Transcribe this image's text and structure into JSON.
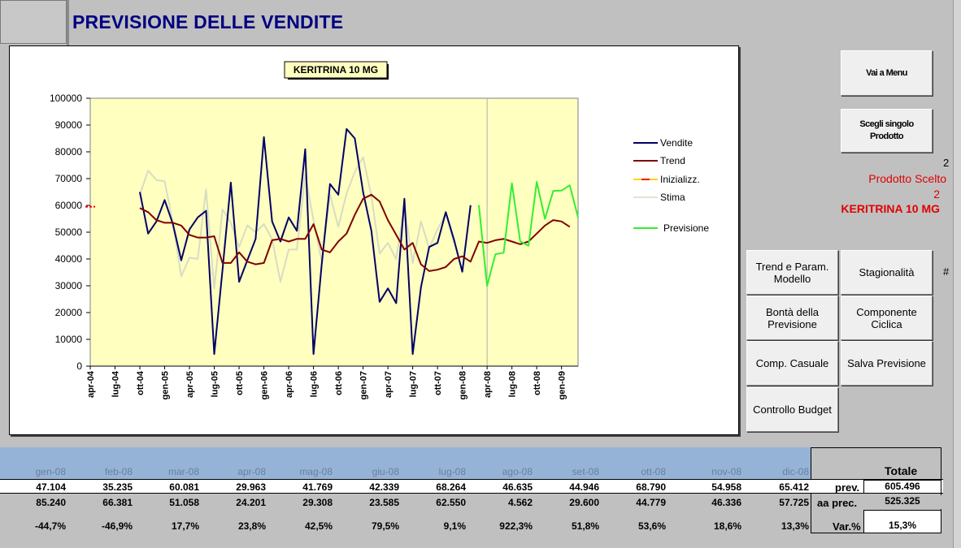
{
  "header": {
    "title": "PREVISIONE DELLE VENDITE"
  },
  "chart_data": {
    "type": "line",
    "title": "KERITRINA  10 MG",
    "ylim": [
      0,
      100000
    ],
    "y_ticks": [
      "100000",
      "90000",
      "80000",
      "70000",
      "60000",
      "50000",
      "40000",
      "30000",
      "20000",
      "10000",
      "0"
    ],
    "x_ticks": [
      "apr-04",
      "lug-04",
      "ott-04",
      "gen-05",
      "apr-05",
      "lug-05",
      "ott-05",
      "gen-06",
      "apr-06",
      "lug-06",
      "ott-06",
      "gen-07",
      "apr-07",
      "lug-07",
      "ott-07",
      "gen-08",
      "apr-08",
      "lug-08",
      "ott-08",
      "gen-09"
    ],
    "legend": [
      "Vendite",
      "Trend",
      "Inizializz.",
      "Stima",
      "Previsione"
    ],
    "legend_position": "right",
    "plot_background": "#ffffc0",
    "colors": {
      "Vendite": "#000066",
      "Trend": "#800000",
      "Inizializz.": "#ff0000",
      "Stima": "#d8dcc4",
      "Previsione": "#33ee33"
    },
    "series": [
      {
        "name": "Vendite",
        "start_month": 6,
        "values": [
          65000,
          49500,
          54000,
          62000,
          53000,
          39500,
          51000,
          55500,
          58000,
          4500,
          36000,
          68500,
          31500,
          39500,
          47500,
          85500,
          54000,
          46500,
          55500,
          50500,
          81000,
          4500,
          38000,
          68000,
          64000,
          88500,
          85000,
          65000,
          50500,
          24000,
          29000,
          23500,
          62500,
          4500,
          29500,
          44500,
          46000,
          57500,
          47104,
          35235,
          60081
        ]
      },
      {
        "name": "Trend",
        "start_month": 6,
        "values": [
          59000,
          57500,
          54500,
          53500,
          53500,
          52500,
          49000,
          48000,
          48000,
          48500,
          38500,
          38500,
          42500,
          39000,
          38000,
          38500,
          47000,
          47500,
          46500,
          47500,
          47500,
          53000,
          43500,
          42500,
          46500,
          49500,
          56500,
          62500,
          64000,
          61500,
          54500,
          49000,
          43500,
          46000,
          38000,
          35500,
          36000,
          37000,
          40000,
          41000,
          39000,
          46500,
          46000,
          47000,
          47500,
          46500,
          45500,
          46500,
          49500,
          52500,
          54500,
          54000,
          52000
        ]
      },
      {
        "name": "Stima",
        "start_month": 6,
        "values": [
          64000,
          73000,
          69500,
          69000,
          53500,
          33500,
          40500,
          40000,
          66000,
          29000,
          58500,
          53500,
          44500,
          52500,
          50000,
          53000,
          47500,
          31500,
          43500,
          43500,
          71500,
          54500,
          39000,
          64000,
          52000,
          64500,
          72500,
          78000,
          63500,
          42000,
          46000,
          40000,
          60000,
          38500,
          54000,
          44000,
          51000,
          57000,
          46000
        ]
      },
      {
        "name": "Previsione",
        "start_month": 47,
        "values": [
          60081,
          29963,
          41769,
          42339,
          68264,
          46635,
          44946,
          68790,
          54958,
          65412,
          65500,
          67500,
          55500
        ]
      }
    ]
  },
  "buttons": {
    "menu": "Vai a Menu",
    "single_product": "Scegli singolo Prodotto",
    "trend": "Trend  e Param. Modello",
    "seasonality": "Stagionalità",
    "goodness": "Bontà della Previsione",
    "cyclic": "Componente Ciclica",
    "casual": "Comp. Casuale",
    "save": "Salva Previsione",
    "budget": "Controllo  Budget"
  },
  "side": {
    "num1": "2",
    "prodotto_label": "Prodotto Scelto",
    "num2": "2",
    "product_name": "KERITRINA 10 MG",
    "hash": "#"
  },
  "table": {
    "months": [
      "gen-08",
      "feb-08",
      "mar-08",
      "apr-08",
      "mag-08",
      "giu-08",
      "lug-08",
      "ago-08",
      "set-08",
      "ott-08",
      "nov-08",
      "dic-08"
    ],
    "prev": [
      "47.104",
      "35.235",
      "60.081",
      "29.963",
      "41.769",
      "42.339",
      "68.264",
      "46.635",
      "44.946",
      "68.790",
      "54.958",
      "65.412"
    ],
    "aa_prec": [
      "85.240",
      "66.381",
      "51.058",
      "24.201",
      "29.308",
      "23.585",
      "62.550",
      "4.562",
      "29.600",
      "44.779",
      "46.336",
      "57.725"
    ],
    "var": [
      "-44,7%",
      "-46,9%",
      "17,7%",
      "23,8%",
      "42,5%",
      "79,5%",
      "9,1%",
      "922,3%",
      "51,8%",
      "53,6%",
      "18,6%",
      "13,3%"
    ],
    "totale_label": "Totale",
    "prev_label": "prev.",
    "aa_prec_label": "aa prec.",
    "var_label": "Var.%",
    "prev_total": "605.496",
    "aa_prec_total": "525.325",
    "var_total": "15,3%"
  }
}
